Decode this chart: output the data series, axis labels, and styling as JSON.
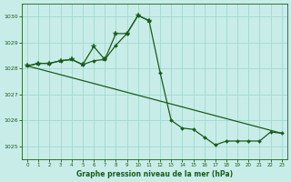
{
  "background_color": "#c8ede8",
  "grid_color": "#a0d8d0",
  "line_color": "#1a5c1a",
  "title": "Graphe pression niveau de la mer (hPa)",
  "xlim": [
    -0.5,
    23.5
  ],
  "ylim": [
    1024.5,
    1030.5
  ],
  "yticks": [
    1025,
    1026,
    1027,
    1028,
    1029,
    1030
  ],
  "xticks": [
    0,
    1,
    2,
    3,
    4,
    5,
    6,
    7,
    8,
    9,
    10,
    11,
    12,
    13,
    14,
    15,
    16,
    17,
    18,
    19,
    20,
    21,
    22,
    23
  ],
  "line1_x": [
    0,
    23
  ],
  "line1_y": [
    1028.1,
    1025.5
  ],
  "line2_x": [
    0,
    1,
    2,
    3,
    4,
    5,
    6,
    7,
    8,
    9,
    10,
    11,
    12,
    13,
    14,
    15,
    16,
    17,
    18,
    19,
    20,
    21,
    22,
    23
  ],
  "line2_y": [
    1028.1,
    1028.2,
    1028.2,
    1028.3,
    1028.35,
    1028.15,
    1028.3,
    1028.35,
    1028.9,
    1029.35,
    1030.05,
    1029.85,
    1027.85,
    1026.0,
    1025.7,
    1025.65,
    1025.35,
    1025.05,
    1025.2,
    1025.2,
    1025.2,
    1025.2,
    1025.55,
    1025.5
  ],
  "line3_x": [
    0,
    1,
    2,
    3,
    4,
    5,
    6,
    7,
    8,
    9,
    10,
    11
  ],
  "line3_y": [
    1028.1,
    1028.2,
    1028.2,
    1028.3,
    1028.35,
    1028.15,
    1028.85,
    1028.35,
    1029.35,
    1029.35,
    1030.05,
    1029.85
  ]
}
